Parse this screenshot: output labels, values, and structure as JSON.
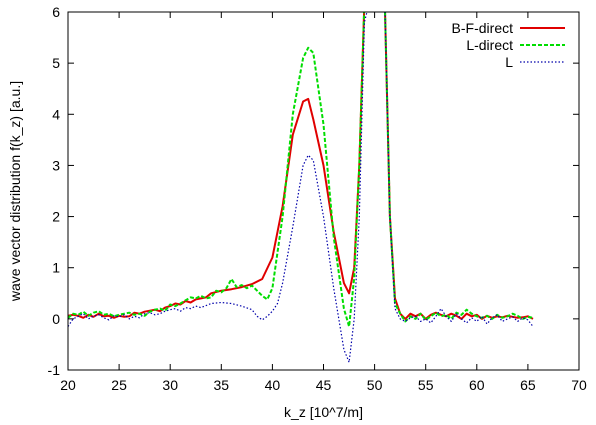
{
  "chart_data": {
    "type": "line",
    "title": "",
    "xlabel": "k_z [10^7/m]",
    "ylabel": "wave vector distribution f(k_z) [a.u.]",
    "xlim": [
      20,
      70
    ],
    "ylim": [
      -1,
      6
    ],
    "xticks": [
      20,
      25,
      30,
      35,
      40,
      45,
      50,
      55,
      60,
      65,
      70
    ],
    "yticks": [
      -1,
      0,
      1,
      2,
      3,
      4,
      5,
      6
    ],
    "xtick_labels": [
      "20",
      "25",
      "30",
      "35",
      "40",
      "45",
      "50",
      "55",
      "60",
      "65",
      "70"
    ],
    "ytick_labels": [
      "-1",
      "0",
      "1",
      "2",
      "3",
      "4",
      "5",
      "6"
    ],
    "grid": false,
    "legend_position": "top-right",
    "series": [
      {
        "name": "B-F-direct",
        "color": "#e00000",
        "style": "solid",
        "x": [
          20,
          20.5,
          21,
          21.5,
          22,
          22.5,
          23,
          23.5,
          24,
          24.5,
          25,
          25.5,
          26,
          26.5,
          27,
          27.5,
          28,
          28.5,
          29,
          29.5,
          30,
          30.5,
          31,
          31.5,
          32,
          32.5,
          33,
          33.5,
          34,
          35,
          36,
          37,
          38,
          39,
          40,
          41,
          42,
          43,
          43.5,
          44,
          45,
          46,
          47,
          47.5,
          48,
          48.5,
          49,
          49.5,
          50,
          50.3,
          50.7,
          51,
          51.5,
          52,
          52.5,
          53,
          53.5,
          54,
          54.5,
          55,
          55.5,
          56,
          56.5,
          57,
          57.5,
          58,
          58.5,
          59,
          59.5,
          60,
          60.5,
          61,
          61.5,
          62,
          62.5,
          63,
          63.5,
          64,
          64.5,
          65,
          65.5
        ],
        "values": [
          0.06,
          0.08,
          0.06,
          0.02,
          0.08,
          0.04,
          0.1,
          0.05,
          0.06,
          0.02,
          0.06,
          0.04,
          0.05,
          0.12,
          0.1,
          0.14,
          0.16,
          0.18,
          0.15,
          0.22,
          0.25,
          0.3,
          0.28,
          0.35,
          0.32,
          0.38,
          0.4,
          0.42,
          0.5,
          0.55,
          0.58,
          0.62,
          0.68,
          0.78,
          1.2,
          2.2,
          3.6,
          4.25,
          4.3,
          3.9,
          3.0,
          1.7,
          0.7,
          0.5,
          1.0,
          3.0,
          6.2,
          6.2,
          6.2,
          6.2,
          6.2,
          6.2,
          2.0,
          0.4,
          0.1,
          0.0,
          0.1,
          0.05,
          0.1,
          0.0,
          0.08,
          0.12,
          0.08,
          0.05,
          0.1,
          0.06,
          0.0,
          0.1,
          0.05,
          0.08,
          0.0,
          0.06,
          0.02,
          0.05,
          0.03,
          0.06,
          0.04,
          0.02,
          0.03,
          0.05,
          0.0
        ],
        "legend_label": "B-F-direct"
      },
      {
        "name": "L-direct",
        "color": "#00dd00",
        "style": "dashed",
        "x": [
          20,
          20.5,
          21,
          21.5,
          22,
          22.5,
          23,
          23.5,
          24,
          24.5,
          25,
          25.5,
          26,
          26.5,
          27,
          27.5,
          28,
          28.5,
          29,
          29.5,
          30,
          30.5,
          31,
          31.5,
          32,
          32.5,
          33,
          33.5,
          34,
          34.5,
          35,
          35.5,
          36,
          36.5,
          37,
          37.5,
          38,
          38.5,
          39,
          39.5,
          40,
          41,
          42,
          43,
          43.5,
          44,
          45,
          46,
          47,
          47.5,
          48,
          48.5,
          49,
          49.5,
          50,
          50.3,
          50.7,
          51,
          51.5,
          52,
          52.5,
          53,
          53.5,
          54,
          54.5,
          55,
          55.5,
          56,
          56.5,
          57,
          57.5,
          58,
          58.5,
          59,
          59.5,
          60,
          60.5,
          61,
          61.5,
          62,
          62.5,
          63,
          63.5,
          64,
          64.5,
          65,
          65.5
        ],
        "values": [
          0.02,
          0.1,
          0.08,
          0.14,
          0.06,
          0.12,
          0.15,
          0.08,
          0.1,
          0.05,
          0.08,
          0.1,
          0.12,
          0.08,
          0.1,
          0.06,
          0.14,
          0.18,
          0.2,
          0.16,
          0.28,
          0.25,
          0.3,
          0.36,
          0.42,
          0.4,
          0.45,
          0.4,
          0.42,
          0.55,
          0.52,
          0.6,
          0.78,
          0.62,
          0.66,
          0.6,
          0.65,
          0.55,
          0.45,
          0.38,
          0.6,
          2.0,
          4.0,
          5.1,
          5.3,
          5.2,
          3.8,
          1.6,
          0.2,
          -0.15,
          0.8,
          3.0,
          6.2,
          6.2,
          6.2,
          6.2,
          6.2,
          6.2,
          2.0,
          0.3,
          0.1,
          -0.05,
          0.05,
          0.0,
          0.1,
          -0.02,
          0.05,
          0.12,
          0.05,
          0.08,
          0.0,
          0.12,
          0.08,
          0.18,
          0.1,
          0.05,
          0.02,
          0.06,
          0.0,
          0.08,
          0.02,
          0.05,
          0.1,
          0.06,
          0.0,
          0.04,
          0.02
        ],
        "legend_label": "L-direct"
      },
      {
        "name": "L",
        "color": "#0000aa",
        "style": "dotted",
        "x": [
          20,
          20.5,
          21,
          21.5,
          22,
          22.5,
          23,
          23.5,
          24,
          24.5,
          25,
          25.5,
          26,
          26.5,
          27,
          27.5,
          28,
          28.5,
          29,
          29.5,
          30,
          30.5,
          31,
          31.5,
          32,
          32.5,
          33,
          33.5,
          34,
          35,
          36,
          37,
          38,
          38.5,
          39,
          39.5,
          40,
          40.5,
          41,
          42,
          43,
          43.5,
          44,
          45,
          46,
          47,
          47.5,
          48,
          48.5,
          49,
          49.5,
          50,
          50.3,
          50.7,
          51,
          51.5,
          52,
          52.5,
          53,
          53.5,
          54,
          54.5,
          55,
          55.5,
          56,
          56.5,
          57,
          57.5,
          58,
          58.5,
          59,
          59.5,
          60,
          60.5,
          61,
          61.5,
          62,
          62.5,
          63,
          63.5,
          64,
          64.5,
          65,
          65.5
        ],
        "values": [
          -0.15,
          0.0,
          0.05,
          0.1,
          0.0,
          0.05,
          0.08,
          0.02,
          -0.02,
          0.06,
          0.04,
          0.08,
          0.0,
          0.05,
          0.02,
          0.1,
          0.12,
          0.08,
          0.1,
          0.15,
          0.18,
          0.2,
          0.15,
          0.22,
          0.2,
          0.25,
          0.22,
          0.26,
          0.3,
          0.32,
          0.3,
          0.25,
          0.18,
          0.05,
          -0.02,
          0.05,
          0.15,
          0.3,
          0.7,
          1.8,
          3.0,
          3.2,
          3.1,
          2.0,
          0.6,
          -0.6,
          -0.85,
          0.0,
          2.0,
          5.8,
          6.2,
          6.2,
          6.2,
          6.2,
          6.2,
          2.0,
          0.2,
          0.0,
          -0.05,
          0.02,
          0.05,
          -0.05,
          0.0,
          -0.08,
          0.05,
          0.2,
          0.05,
          -0.05,
          0.1,
          0.0,
          -0.08,
          0.02,
          -0.05,
          0.05,
          -0.1,
          0.02,
          0.08,
          -0.05,
          0.0,
          0.04,
          -0.05,
          0.02,
          -0.02,
          -0.15
        ],
        "legend_label": "L"
      }
    ]
  }
}
